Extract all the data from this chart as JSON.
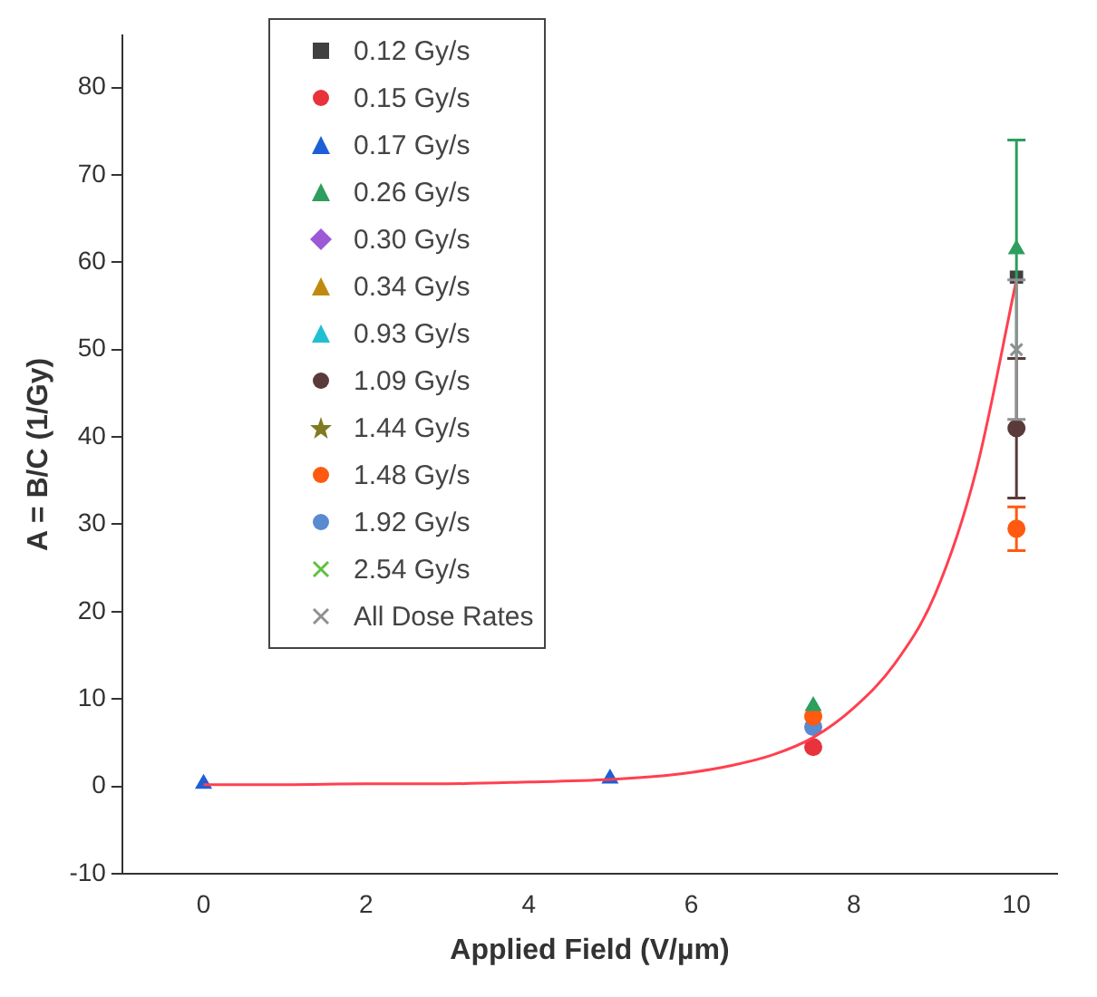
{
  "chart_data": {
    "type": "scatter",
    "xlabel": "Applied Field (V/µm)",
    "ylabel": "A = B/C (1/Gy)",
    "x": [
      0,
      5,
      7.5,
      10
    ],
    "xlim": [
      -1,
      10.5
    ],
    "xticks": [
      0,
      2,
      4,
      6,
      8,
      10
    ],
    "ylim": [
      -10,
      86
    ],
    "yticks": [
      -10,
      0,
      10,
      20,
      30,
      40,
      50,
      60,
      70,
      80
    ],
    "grid": false,
    "legend": "top left",
    "series": [
      {
        "name": "0.12 Gy/s",
        "color": "#404040",
        "marker": "square",
        "values": [
          null,
          null,
          null,
          58.3
        ]
      },
      {
        "name": "0.15 Gy/s",
        "color": "#e8323c",
        "marker": "circle",
        "values": [
          null,
          null,
          4.5,
          null
        ]
      },
      {
        "name": "0.17 Gy/s",
        "color": "#1f5fd6",
        "marker": "triangle",
        "values": [
          0.3,
          0.9,
          null,
          null
        ]
      },
      {
        "name": "0.26 Gy/s",
        "color": "#2e9e5e",
        "marker": "triangle",
        "values": [
          null,
          null,
          9.2,
          61.5
        ],
        "errors": [
          null,
          null,
          null,
          12.5
        ]
      },
      {
        "name": "0.30 Gy/s",
        "color": "#9b59d6",
        "marker": "diamond",
        "values": [
          null,
          null,
          null,
          null
        ]
      },
      {
        "name": "0.34 Gy/s",
        "color": "#c08a10",
        "marker": "triangle",
        "values": [
          null,
          null,
          null,
          null
        ]
      },
      {
        "name": "0.93 Gy/s",
        "color": "#20c0d0",
        "marker": "triangle",
        "values": [
          null,
          null,
          null,
          null
        ]
      },
      {
        "name": "1.09 Gy/s",
        "color": "#5a3a3a",
        "marker": "circle",
        "values": [
          null,
          null,
          null,
          41
        ],
        "errors": [
          null,
          null,
          null,
          8
        ]
      },
      {
        "name": "1.44 Gy/s",
        "color": "#807a20",
        "marker": "star",
        "values": [
          null,
          null,
          null,
          null
        ]
      },
      {
        "name": "1.48 Gy/s",
        "color": "#ff5a10",
        "marker": "circle",
        "values": [
          null,
          null,
          8,
          29.5
        ],
        "errors": [
          null,
          null,
          null,
          2.5
        ]
      },
      {
        "name": "1.92 Gy/s",
        "color": "#5a8ad0",
        "marker": "circle",
        "values": [
          null,
          null,
          6.8,
          null
        ]
      },
      {
        "name": "2.54 Gy/s",
        "color": "#60c040",
        "marker": "cross",
        "values": [
          null,
          null,
          null,
          null
        ]
      },
      {
        "name": "All Dose Rates",
        "color": "#909090",
        "marker": "cross",
        "values": [
          null,
          null,
          null,
          50
        ],
        "errors": [
          null,
          null,
          null,
          8
        ]
      },
      {
        "type": "line",
        "color": "#ff4050",
        "marker": "none",
        "x": [
          0,
          1,
          2,
          3,
          4,
          5,
          5.5,
          6,
          6.5,
          7,
          7.5,
          8,
          8.5,
          9,
          9.5,
          10
        ],
        "values": [
          0.2,
          0.2,
          0.3,
          0.3,
          0.5,
          0.8,
          1.1,
          1.6,
          2.4,
          3.6,
          5.6,
          9,
          14,
          22,
          36,
          58
        ]
      }
    ]
  }
}
